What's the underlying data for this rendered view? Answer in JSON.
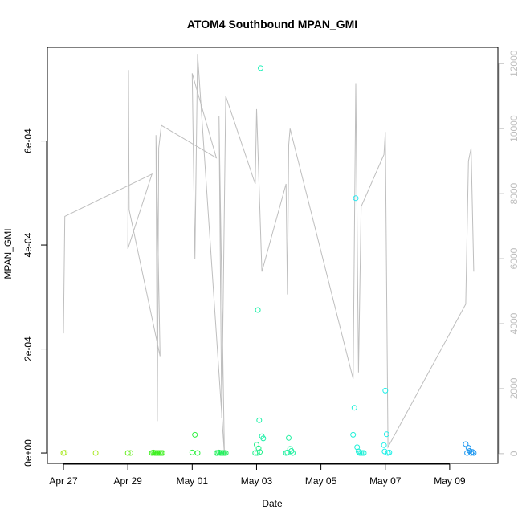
{
  "chart_data": {
    "type": "scatter",
    "title": "ATOM4 Southbound MPAN_GMI",
    "xlabel": "Date",
    "ylabel": "MPAN_GMI",
    "xlim": [
      "2016-04-26T12:00",
      "2016-05-10T12:00"
    ],
    "ylim": [
      -2e-05,
      0.00078
    ],
    "y2lim": [
      -300,
      12500
    ],
    "x_ticks": [
      {
        "date": "2016-04-27",
        "label": "Apr 27"
      },
      {
        "date": "2016-04-29",
        "label": "Apr 29"
      },
      {
        "date": "2016-05-01",
        "label": "May 01"
      },
      {
        "date": "2016-05-03",
        "label": "May 03"
      },
      {
        "date": "2016-05-05",
        "label": "May 05"
      },
      {
        "date": "2016-05-07",
        "label": "May 07"
      },
      {
        "date": "2016-05-09",
        "label": "May 09"
      }
    ],
    "y_ticks": [
      {
        "value": 0,
        "label": "0e+00"
      },
      {
        "value": 0.0002,
        "label": "2e-04"
      },
      {
        "value": 0.0004,
        "label": "4e-04"
      },
      {
        "value": 0.0006,
        "label": "6e-04"
      }
    ],
    "y2_ticks": [
      {
        "value": 0,
        "label": "0"
      },
      {
        "value": 2000,
        "label": "2000"
      },
      {
        "value": 4000,
        "label": "4000"
      },
      {
        "value": 6000,
        "label": "6000"
      },
      {
        "value": 8000,
        "label": "8000"
      },
      {
        "value": 10000,
        "label": "10000"
      },
      {
        "value": 12000,
        "label": "12000"
      }
    ],
    "colors": {
      "line": "#bebebe",
      "axis": "#000000",
      "right_axis": "#bebebe"
    },
    "series": [
      {
        "marker": "open-circle",
        "points": [
          {
            "x": "2016-04-27T00:00",
            "y": 0.0,
            "color": "#a8e81f"
          },
          {
            "x": "2016-04-27T01:00",
            "y": 5e-07,
            "color": "#a8e81f"
          },
          {
            "x": "2016-04-28T00:00",
            "y": 0.0,
            "color": "#a8e81f"
          },
          {
            "x": "2016-04-29T00:00",
            "y": 0.0,
            "color": "#66ef1f"
          },
          {
            "x": "2016-04-29T02:00",
            "y": 0.0,
            "color": "#66ef1f"
          },
          {
            "x": "2016-04-29T18:00",
            "y": 0.0,
            "color": "#3df01f"
          },
          {
            "x": "2016-04-29T19:00",
            "y": 1e-06,
            "color": "#3df01f"
          },
          {
            "x": "2016-04-29T20:00",
            "y": 0.0,
            "color": "#3df01f"
          },
          {
            "x": "2016-04-29T21:00",
            "y": 0.0,
            "color": "#3df01f"
          },
          {
            "x": "2016-04-29T22:00",
            "y": 0.0,
            "color": "#3df01f"
          },
          {
            "x": "2016-04-29T23:00",
            "y": 0.0,
            "color": "#3df01f"
          },
          {
            "x": "2016-04-30T00:00",
            "y": 0.0,
            "color": "#3df01f"
          },
          {
            "x": "2016-04-30T01:00",
            "y": 0.0,
            "color": "#3df01f"
          },
          {
            "x": "2016-04-30T02:00",
            "y": 0.0,
            "color": "#3df01f"
          },
          {
            "x": "2016-05-01T00:00",
            "y": 1e-06,
            "color": "#2ef040"
          },
          {
            "x": "2016-05-01T02:00",
            "y": 3.5e-05,
            "color": "#2ef040"
          },
          {
            "x": "2016-05-01T04:00",
            "y": 0.0,
            "color": "#2ef040"
          },
          {
            "x": "2016-05-01T18:00",
            "y": 0.0,
            "color": "#1ff05a"
          },
          {
            "x": "2016-05-01T19:00",
            "y": 0.0,
            "color": "#1ff05a"
          },
          {
            "x": "2016-05-01T20:00",
            "y": 1e-06,
            "color": "#1ff05a"
          },
          {
            "x": "2016-05-01T21:00",
            "y": 0.0,
            "color": "#1ff05a"
          },
          {
            "x": "2016-05-01T22:00",
            "y": 0.0,
            "color": "#1ff05a"
          },
          {
            "x": "2016-05-01T23:00",
            "y": 0.0,
            "color": "#1ff05a"
          },
          {
            "x": "2016-05-02T00:00",
            "y": 0.0,
            "color": "#1ff05a"
          },
          {
            "x": "2016-05-02T01:00",
            "y": 0.0,
            "color": "#1ff05a"
          },
          {
            "x": "2016-05-02T23:00",
            "y": 0.0,
            "color": "#1ff08a"
          },
          {
            "x": "2016-05-03T00:00",
            "y": 1.6e-05,
            "color": "#1ff08a"
          },
          {
            "x": "2016-05-03T01:00",
            "y": 0.000275,
            "color": "#1ff0a8"
          },
          {
            "x": "2016-05-03T02:00",
            "y": 6.3e-05,
            "color": "#1ff0a8"
          },
          {
            "x": "2016-05-03T03:00",
            "y": 0.00074,
            "color": "#1ff0b8"
          },
          {
            "x": "2016-05-03T04:00",
            "y": 3.2e-05,
            "color": "#1ff0a8"
          },
          {
            "x": "2016-05-03T05:00",
            "y": 2.8e-05,
            "color": "#1ff0a8"
          },
          {
            "x": "2016-05-03T01:30",
            "y": 9e-06,
            "color": "#1ff08a"
          },
          {
            "x": "2016-05-03T02:30",
            "y": 2e-06,
            "color": "#1ff08a"
          },
          {
            "x": "2016-05-03T00:30",
            "y": 0.0,
            "color": "#1ff08a"
          },
          {
            "x": "2016-05-03T22:00",
            "y": 0.0,
            "color": "#1ff0a0"
          },
          {
            "x": "2016-05-03T23:00",
            "y": 1e-06,
            "color": "#1ff0a0"
          },
          {
            "x": "2016-05-04T00:00",
            "y": 2.9e-05,
            "color": "#1ff0a0"
          },
          {
            "x": "2016-05-04T01:00",
            "y": 8e-06,
            "color": "#1ff0a0"
          },
          {
            "x": "2016-05-04T02:00",
            "y": 4e-06,
            "color": "#1ff0a0"
          },
          {
            "x": "2016-05-04T03:00",
            "y": 0.0,
            "color": "#1ff0a0"
          },
          {
            "x": "2016-05-06T00:00",
            "y": 3.5e-05,
            "color": "#1ff0d8"
          },
          {
            "x": "2016-05-06T01:00",
            "y": 8.7e-05,
            "color": "#1ff0d8"
          },
          {
            "x": "2016-05-06T02:00",
            "y": 0.00049,
            "color": "#1fe8f0"
          },
          {
            "x": "2016-05-06T03:00",
            "y": 1.1e-05,
            "color": "#1ff0d8"
          },
          {
            "x": "2016-05-06T04:00",
            "y": 3e-06,
            "color": "#1ff0d8"
          },
          {
            "x": "2016-05-06T05:00",
            "y": 0.0,
            "color": "#1ff0d8"
          },
          {
            "x": "2016-05-06T06:00",
            "y": 0.0,
            "color": "#1ff0d8"
          },
          {
            "x": "2016-05-06T07:00",
            "y": 0.0,
            "color": "#1ff0d8"
          },
          {
            "x": "2016-05-06T08:00",
            "y": 0.0,
            "color": "#1ff0d8"
          },
          {
            "x": "2016-05-06T23:00",
            "y": 1.5e-05,
            "color": "#1ff0e8"
          },
          {
            "x": "2016-05-06T23:30",
            "y": 3e-06,
            "color": "#1ff0e8"
          },
          {
            "x": "2016-05-07T00:00",
            "y": 0.00012,
            "color": "#1ff0e8"
          },
          {
            "x": "2016-05-07T01:00",
            "y": 3.6e-05,
            "color": "#1ff0e8"
          },
          {
            "x": "2016-05-07T02:00",
            "y": 0.0,
            "color": "#1ff0e8"
          },
          {
            "x": "2016-05-07T03:00",
            "y": 1e-06,
            "color": "#1ff0e8"
          },
          {
            "x": "2016-05-09T12:00",
            "y": 1.7e-05,
            "color": "#1f98f0"
          },
          {
            "x": "2016-05-09T13:00",
            "y": 0.0,
            "color": "#1f98f0"
          },
          {
            "x": "2016-05-09T14:00",
            "y": 1e-05,
            "color": "#1f98f0"
          },
          {
            "x": "2016-05-09T15:00",
            "y": 4e-06,
            "color": "#1f98f0"
          },
          {
            "x": "2016-05-09T16:00",
            "y": 0.0,
            "color": "#1f98f0"
          },
          {
            "x": "2016-05-09T17:00",
            "y": 2e-06,
            "color": "#1f98f0"
          },
          {
            "x": "2016-05-09T18:00",
            "y": 0.0,
            "color": "#1f98f0"
          }
        ]
      },
      {
        "marker": "line",
        "axis": "right",
        "points": [
          {
            "x": "2016-04-27T00:00",
            "y": 3700
          },
          {
            "x": "2016-04-27T01:00",
            "y": 7300
          },
          {
            "x": "2016-04-29T18:00",
            "y": 8600
          },
          {
            "x": "2016-04-29T00:00",
            "y": 6300
          },
          {
            "x": "2016-04-29T00:30",
            "y": 11800
          },
          {
            "x": "2016-04-29T01:00",
            "y": 7500
          },
          {
            "x": "2016-04-30T00:00",
            "y": 3000
          },
          {
            "x": "2016-04-29T21:00",
            "y": 9800
          },
          {
            "x": "2016-04-29T22:00",
            "y": 1000
          },
          {
            "x": "2016-04-29T23:00",
            "y": 9400
          },
          {
            "x": "2016-04-30T01:00",
            "y": 10100
          },
          {
            "x": "2016-05-01T18:00",
            "y": 9100
          },
          {
            "x": "2016-05-01T00:00",
            "y": 11700
          },
          {
            "x": "2016-05-01T02:00",
            "y": 6000
          },
          {
            "x": "2016-05-01T04:00",
            "y": 12300
          },
          {
            "x": "2016-05-02T00:00",
            "y": 0
          },
          {
            "x": "2016-05-01T20:00",
            "y": 10400
          },
          {
            "x": "2016-05-01T22:00",
            "y": 1100
          },
          {
            "x": "2016-05-02T01:00",
            "y": 11000
          },
          {
            "x": "2016-05-02T23:00",
            "y": 8300
          },
          {
            "x": "2016-05-03T00:00",
            "y": 10600
          },
          {
            "x": "2016-05-03T04:00",
            "y": 5600
          },
          {
            "x": "2016-05-03T22:00",
            "y": 8300
          },
          {
            "x": "2016-05-03T23:00",
            "y": 4900
          },
          {
            "x": "2016-05-04T00:00",
            "y": 9500
          },
          {
            "x": "2016-05-04T01:00",
            "y": 10000
          },
          {
            "x": "2016-05-06T00:00",
            "y": 2300
          },
          {
            "x": "2016-05-06T02:00",
            "y": 11400
          },
          {
            "x": "2016-05-06T04:00",
            "y": 2500
          },
          {
            "x": "2016-05-06T06:00",
            "y": 7600
          },
          {
            "x": "2016-05-06T23:00",
            "y": 9200
          },
          {
            "x": "2016-05-07T00:00",
            "y": 9900
          },
          {
            "x": "2016-05-07T02:00",
            "y": 200
          },
          {
            "x": "2016-05-09T12:00",
            "y": 4600
          },
          {
            "x": "2016-05-09T14:00",
            "y": 9000
          },
          {
            "x": "2016-05-09T16:00",
            "y": 9400
          },
          {
            "x": "2016-05-09T18:00",
            "y": 5600
          }
        ]
      }
    ],
    "grid": false,
    "legend": "none"
  }
}
